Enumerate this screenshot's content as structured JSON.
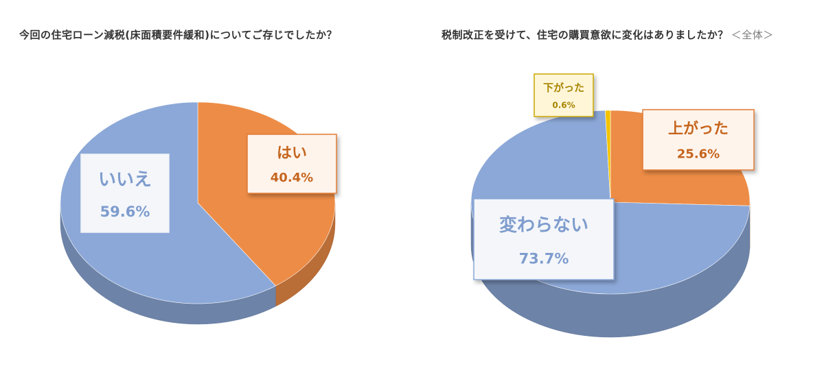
{
  "chart_data": [
    {
      "type": "pie",
      "title": "今回の住宅ローン減税(床面積要件緩和)についてご存じでしたか？",
      "slices": [
        {
          "label": "はい",
          "value": 40.4,
          "value_label": "40.4%",
          "color": "#ED8C46",
          "label_color": "#C5651E"
        },
        {
          "label": "いいえ",
          "value": 59.6,
          "value_label": "59.6%",
          "color": "#8CA8D8",
          "label_color": "#7E9CCD"
        }
      ]
    },
    {
      "type": "pie",
      "title": "税制改正を受けて、住宅の購買意欲に変化はありましたか？",
      "title_scope": "＜全体＞",
      "slices": [
        {
          "label": "上がった",
          "value": 25.6,
          "value_label": "25.6%",
          "color": "#ED8C46",
          "label_color": "#C5651E"
        },
        {
          "label": "変わらない",
          "value": 73.7,
          "value_label": "73.7%",
          "color": "#8CA8D8",
          "label_color": "#7E9CCD"
        },
        {
          "label": "下がった",
          "value": 0.6,
          "value_label": "0.6%",
          "color": "#F5C300",
          "label_color": "#A88500"
        }
      ]
    }
  ]
}
